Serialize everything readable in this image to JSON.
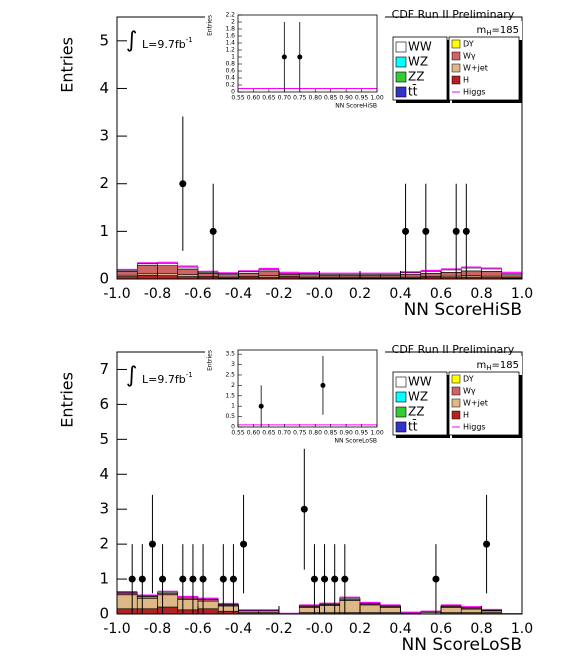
{
  "chart_data": [
    {
      "type": "histogram",
      "ylabel": "Entries",
      "xlabel": "NN ScoreHiSB",
      "experiment": "CDF Run II Preliminary",
      "mass_symbol": "m",
      "mass_subscript": "H",
      "mass_value": "=185",
      "integral": "∫",
      "lumi": "L=9.7fb",
      "lumi_exponent": "-1",
      "xlim": [
        -1,
        1
      ],
      "ylim": [
        0,
        5.5
      ],
      "xticks": [
        {
          "value": -1,
          "label": "-1.0"
        },
        -0.8,
        -0.6,
        -0.4,
        -0.2,
        {
          "value": 0,
          "label": "-0.0"
        },
        0.2,
        0.4,
        0.6,
        0.8,
        {
          "value": 1,
          "label": "1.0"
        }
      ],
      "yticks": [
        0,
        1,
        2,
        3,
        4,
        5
      ],
      "bins": [
        -1,
        -0.9,
        -0.8,
        -0.7,
        -0.6,
        -0.5,
        -0.4,
        -0.3,
        -0.2,
        -0.1,
        0,
        0.1,
        0.2,
        0.3,
        0.4,
        0.5,
        0.6,
        0.7,
        0.8,
        0.9,
        1
      ],
      "series": [
        {
          "name": "WW",
          "color": "#ffffff",
          "values": [
            0.02,
            0.03,
            0.05,
            0.04,
            0.02,
            0.02,
            0.03,
            0.03,
            0.02,
            0.02,
            0.02,
            0.02,
            0.02,
            0.02,
            0.03,
            0.04,
            0.05,
            0.06,
            0.05,
            0.03
          ]
        },
        {
          "name": "WZ",
          "color": "#00ffff"
        },
        {
          "name": "ZZ",
          "color": "#33cc33"
        },
        {
          "name": "tt̄",
          "color": "#3333cc"
        },
        {
          "name": "DY",
          "color": "#ffff00"
        },
        {
          "name": "Wγ",
          "color": "#cc6666",
          "values": [
            0.08,
            0.17,
            0.16,
            0.12,
            0.07,
            0.05,
            0.07,
            0.1,
            0.05,
            0.05,
            0.04,
            0.04,
            0.04,
            0.04,
            0.06,
            0.07,
            0.08,
            0.1,
            0.1,
            0.05
          ]
        },
        {
          "name": "W+jet",
          "color": "#deb887",
          "values": [
            0.03,
            0.04,
            0.05,
            0.04,
            0.02,
            0.02,
            0.02,
            0.03,
            0.02,
            0.02,
            0.02,
            0.02,
            0.02,
            0.02,
            0.02,
            0.02,
            0.03,
            0.03,
            0.03,
            0.02
          ]
        },
        {
          "name": "H",
          "color": "#b22222",
          "values": [
            0.05,
            0.08,
            0.07,
            0.05,
            0.03,
            0.02,
            0.03,
            0.04,
            0.03,
            0.02,
            0.02,
            0.02,
            0.02,
            0.02,
            0.02,
            0.03,
            0.03,
            0.04,
            0.03,
            0.02
          ]
        },
        {
          "name": "Higgs",
          "color": "#ff00ff",
          "style": "line",
          "values": [
            0.2,
            0.34,
            0.35,
            0.27,
            0.16,
            0.13,
            0.17,
            0.22,
            0.14,
            0.13,
            0.12,
            0.12,
            0.12,
            0.12,
            0.15,
            0.18,
            0.21,
            0.25,
            0.23,
            0.14
          ]
        }
      ],
      "points": {
        "x": [
          -0.675,
          -0.525,
          0.425,
          0.525,
          0.675,
          0.725
        ],
        "values": [
          2,
          1,
          1,
          1,
          1,
          1
        ],
        "errors": [
          1.41,
          1,
          1,
          1,
          1,
          1
        ]
      },
      "inset": {
        "title": "NN ScoreHiSB",
        "ylabel": "Entries",
        "xlim": [
          0.55,
          1
        ],
        "ylim": [
          0,
          2.2
        ],
        "xticks": [
          0.55,
          {
            "value": 0.6,
            "label": "0.60"
          },
          0.65,
          {
            "value": 0.7,
            "label": "0.70"
          },
          0.75,
          {
            "value": 0.8,
            "label": "0.80"
          },
          0.85,
          {
            "value": 0.9,
            "label": "0.90"
          },
          0.95,
          {
            "value": 1,
            "label": "1.00"
          }
        ],
        "yticks": [
          0,
          0.2,
          0.4,
          0.6,
          0.8,
          1,
          1.2,
          1.4,
          1.6,
          1.8,
          2,
          2.2
        ],
        "points": {
          "x": [
            0.7,
            0.75
          ],
          "values": [
            1,
            1
          ],
          "errors": [
            1,
            1
          ]
        }
      }
    },
    {
      "type": "histogram",
      "ylabel": "Entries",
      "xlabel": "NN ScoreLoSB",
      "experiment": "CDF Run II Preliminary",
      "mass_symbol": "m",
      "mass_subscript": "H",
      "mass_value": "=185",
      "integral": "∫",
      "lumi": "L=9.7fb",
      "lumi_exponent": "-1",
      "xlim": [
        -1,
        1
      ],
      "ylim": [
        0,
        7.5
      ],
      "xticks": [
        {
          "value": -1,
          "label": "-1.0"
        },
        -0.8,
        -0.6,
        -0.4,
        -0.2,
        {
          "value": 0,
          "label": "-0.0"
        },
        0.2,
        0.4,
        0.6,
        0.8,
        {
          "value": 1,
          "label": "1.0"
        }
      ],
      "yticks": [
        0,
        1,
        2,
        3,
        4,
        5,
        6,
        7
      ],
      "bins": [
        -1,
        -0.9,
        -0.8,
        -0.7,
        -0.6,
        -0.5,
        -0.4,
        -0.3,
        -0.2,
        -0.1,
        0,
        0.1,
        0.2,
        0.3,
        0.4,
        0.5,
        0.6,
        0.7,
        0.8,
        0.9,
        1
      ],
      "series": [
        {
          "name": "WW",
          "color": "#ffffff",
          "values": [
            0.02,
            0.02,
            0.03,
            0.03,
            0.02,
            0.02,
            0.01,
            0.01,
            0,
            0.02,
            0.02,
            0.03,
            0.02,
            0.02,
            0,
            0.01,
            0.02,
            0.02,
            0.01,
            0
          ]
        },
        {
          "name": "WZ",
          "color": "#00ffff"
        },
        {
          "name": "ZZ",
          "color": "#33cc33"
        },
        {
          "name": "tt̄",
          "color": "#3333cc"
        },
        {
          "name": "DY",
          "color": "#ffff00"
        },
        {
          "name": "Wγ",
          "color": "#cc6666",
          "values": [
            0.05,
            0.05,
            0.05,
            0.04,
            0.04,
            0.03,
            0.01,
            0.01,
            0,
            0.03,
            0.03,
            0.04,
            0.03,
            0.03,
            0,
            0.01,
            0.03,
            0.03,
            0.02,
            0
          ]
        },
        {
          "name": "W+jet",
          "color": "#deb887",
          "values": [
            0.4,
            0.3,
            0.35,
            0.3,
            0.22,
            0.15,
            0.05,
            0.05,
            0.01,
            0.15,
            0.2,
            0.35,
            0.22,
            0.15,
            0.01,
            0.05,
            0.15,
            0.1,
            0.05,
            0
          ]
        },
        {
          "name": "H",
          "color": "#b22222",
          "values": [
            0.15,
            0.15,
            0.2,
            0.12,
            0.15,
            0.08,
            0.04,
            0.04,
            0,
            0.04,
            0.04,
            0.04,
            0.04,
            0.04,
            0.03,
            0,
            0.04,
            0.04,
            0.04,
            0
          ]
        },
        {
          "name": "Higgs",
          "color": "#ff00ff",
          "style": "line",
          "values": [
            0.64,
            0.54,
            0.65,
            0.5,
            0.45,
            0.3,
            0.12,
            0.12,
            0.02,
            0.26,
            0.31,
            0.48,
            0.33,
            0.26,
            0.05,
            0.08,
            0.26,
            0.21,
            0.13,
            0.01
          ]
        }
      ],
      "points": {
        "x": [
          -0.925,
          -0.875,
          -0.825,
          -0.775,
          -0.675,
          -0.625,
          -0.575,
          -0.475,
          -0.425,
          -0.375,
          -0.075,
          -0.025,
          0.025,
          0.075,
          0.125,
          0.575,
          0.825
        ],
        "values": [
          1,
          1,
          2,
          1,
          1,
          1,
          1,
          1,
          1,
          2,
          3,
          1,
          1,
          1,
          1,
          1,
          2
        ],
        "errors": [
          1,
          1,
          1.41,
          1,
          1,
          1,
          1,
          1,
          1,
          1.41,
          1.73,
          1,
          1,
          1,
          1,
          1,
          1.41
        ]
      },
      "inset": {
        "title": "NN ScoreLoSB",
        "ylabel": "Entries",
        "xlim": [
          0.55,
          1
        ],
        "ylim": [
          0,
          3.7
        ],
        "xticks": [
          0.55,
          {
            "value": 0.6,
            "label": "0.60"
          },
          0.65,
          {
            "value": 0.7,
            "label": "0.70"
          },
          0.75,
          {
            "value": 0.8,
            "label": "0.80"
          },
          0.85,
          {
            "value": 0.9,
            "label": "0.90"
          },
          0.95,
          {
            "value": 1,
            "label": "1.00"
          }
        ],
        "yticks": [
          0,
          0.5,
          1,
          1.5,
          2,
          2.5,
          3,
          3.5
        ],
        "points": {
          "x": [
            0.625,
            0.825
          ],
          "values": [
            1,
            2
          ],
          "errors": [
            1,
            1.41
          ]
        }
      }
    }
  ]
}
